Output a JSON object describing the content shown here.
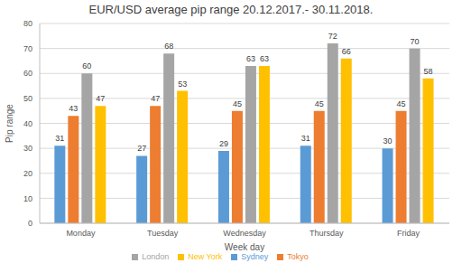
{
  "chart_data": {
    "type": "bar",
    "title": "EUR/USD average pip range 20.12.2017.- 30.11.2018.",
    "x_label": "Week day",
    "y_label": "Pip range",
    "categories": [
      "Monday",
      "Tuesday",
      "Wednesday",
      "Thursday",
      "Friday"
    ],
    "series": [
      {
        "name": "Sydney",
        "color": "#5b9bd5",
        "values": [
          31,
          27,
          29,
          31,
          30
        ]
      },
      {
        "name": "Tokyo",
        "color": "#ed7d31",
        "values": [
          43,
          47,
          45,
          45,
          45
        ]
      },
      {
        "name": "London",
        "color": "#a5a5a5",
        "values": [
          60,
          68,
          63,
          72,
          70
        ]
      },
      {
        "name": "New York",
        "color": "#ffc000",
        "values": [
          47,
          53,
          63,
          66,
          58
        ]
      }
    ],
    "ylim": [
      0,
      80
    ],
    "yticks": [
      0,
      10,
      20,
      30,
      40,
      50,
      60,
      70,
      80
    ],
    "grid": true,
    "legend": "bottom",
    "data_labels": true
  }
}
